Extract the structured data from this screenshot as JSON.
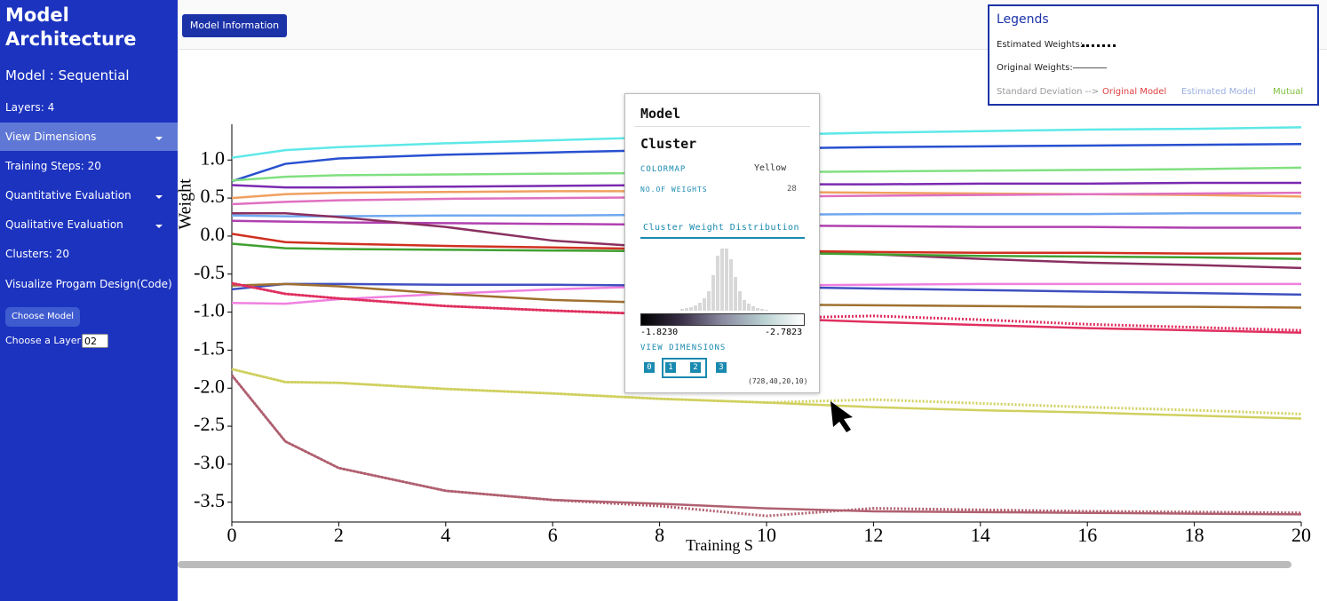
{
  "sidebar": {
    "title": "Model Architecture",
    "model": "Model : Sequential",
    "layers": "Layers: 4",
    "items": [
      "View Dimensions",
      "Training Steps: 20",
      "Quantitative Evaluation",
      "Qualitative Evaluation",
      "Clusters: 20",
      "Visualize Progam Design(Code)"
    ],
    "button": "Choose Model",
    "layer_label": "Choose a Layer:",
    "layer_value": "02"
  },
  "toolbar": {
    "button": "Model Information"
  },
  "legend_box": {
    "title": "Legends",
    "estimated": "Estimated Weights:",
    "original": "Original Weights:",
    "std_label": "Standard Deviation -->",
    "std_items": [
      "Original Model",
      "Estimated Model",
      "Mutual"
    ]
  },
  "panel": {
    "model": "Model",
    "cluster": "Cluster",
    "colormap_label": "COLORMAP",
    "colormap_value": "Yellow",
    "weights_label": "NO.OF WEIGHTS",
    "weights_value": 28,
    "tab": "Cluster Weight Distribution",
    "histogram": [
      2,
      3,
      4,
      6,
      9,
      14,
      22,
      40,
      62,
      70,
      70,
      58,
      38,
      22,
      12,
      8,
      5,
      3,
      2,
      1
    ],
    "range_min": "-1.8230",
    "range_max": "-2.7823",
    "dims_label": "VIEW DIMENSIONS",
    "dims": [
      "0",
      "1",
      "2",
      "3"
    ],
    "shape": "(728,40,20,10)"
  },
  "chart_data": {
    "type": "line",
    "ylabel": "Weight",
    "xlabel": "Training S",
    "x": [
      0,
      1,
      2,
      4,
      6,
      8,
      10,
      12,
      14,
      16,
      18,
      20
    ],
    "xlim": [
      0,
      20
    ],
    "xticks": [
      0,
      2,
      4,
      6,
      8,
      10,
      12,
      14,
      16,
      18,
      20
    ],
    "ylim": [
      -3.76,
      1.47
    ],
    "yticks": [
      {
        "value": 1,
        "label": "1.0"
      },
      0.5,
      {
        "value": 0,
        "label": "0.0"
      },
      -0.5,
      {
        "value": -1,
        "label": "-1.0"
      },
      -1.5,
      {
        "value": -2,
        "label": "-2.0"
      },
      -2.5,
      {
        "value": -3,
        "label": "-3.0"
      },
      -3.5
    ],
    "series": [
      {
        "color": "#5ee8e8",
        "dash": "solid",
        "values": [
          1.03,
          1.13,
          1.17,
          1.22,
          1.26,
          1.3,
          1.33,
          1.36,
          1.38,
          1.4,
          1.41,
          1.43
        ]
      },
      {
        "color": "#2850d0",
        "dash": "solid",
        "values": [
          0.72,
          0.95,
          1.02,
          1.07,
          1.1,
          1.13,
          1.15,
          1.17,
          1.18,
          1.19,
          1.2,
          1.21
        ]
      },
      {
        "color": "#80e080",
        "dash": "solid",
        "values": [
          0.73,
          0.78,
          0.8,
          0.81,
          0.82,
          0.83,
          0.84,
          0.85,
          0.86,
          0.87,
          0.88,
          0.9
        ]
      },
      {
        "color": "#7a2ab0",
        "dash": "solid",
        "values": [
          0.67,
          0.64,
          0.64,
          0.65,
          0.66,
          0.67,
          0.68,
          0.68,
          0.69,
          0.69,
          0.7,
          0.7
        ]
      },
      {
        "color": "#f0a060",
        "dash": "solid",
        "values": [
          0.5,
          0.55,
          0.57,
          0.58,
          0.59,
          0.59,
          0.58,
          0.57,
          0.56,
          0.55,
          0.54,
          0.52
        ]
      },
      {
        "color": "#e070c0",
        "dash": "solid",
        "values": [
          0.42,
          0.45,
          0.47,
          0.49,
          0.5,
          0.51,
          0.52,
          0.53,
          0.54,
          0.55,
          0.56,
          0.57
        ]
      },
      {
        "color": "#70a8f0",
        "dash": "solid",
        "values": [
          0.27,
          0.26,
          0.26,
          0.27,
          0.27,
          0.28,
          0.28,
          0.29,
          0.29,
          0.29,
          0.3,
          0.3
        ]
      },
      {
        "color": "#b040b0",
        "dash": "solid",
        "values": [
          0.2,
          0.19,
          0.18,
          0.17,
          0.16,
          0.15,
          0.14,
          0.13,
          0.12,
          0.12,
          0.11,
          0.11
        ]
      },
      {
        "color": "#8a3060",
        "dash": "solid",
        "values": [
          0.3,
          0.3,
          0.25,
          0.12,
          -0.06,
          -0.15,
          -0.2,
          -0.24,
          -0.3,
          -0.35,
          -0.38,
          -0.42
        ]
      },
      {
        "color": "#d03020",
        "dash": "solid",
        "values": [
          0.03,
          -0.08,
          -0.1,
          -0.13,
          -0.15,
          -0.17,
          -0.19,
          -0.21,
          -0.22,
          -0.22,
          -0.23,
          -0.23
        ]
      },
      {
        "color": "#40a030",
        "dash": "solid",
        "values": [
          -0.1,
          -0.16,
          -0.17,
          -0.18,
          -0.19,
          -0.2,
          -0.22,
          -0.24,
          -0.26,
          -0.27,
          -0.28,
          -0.3
        ]
      },
      {
        "color": "#4050c0",
        "dash": "solid",
        "values": [
          -0.7,
          -0.63,
          -0.63,
          -0.64,
          -0.64,
          -0.65,
          -0.67,
          -0.69,
          -0.71,
          -0.73,
          -0.75,
          -0.77
        ]
      },
      {
        "color": "#f080e0",
        "dash": "solid",
        "values": [
          -0.88,
          -0.89,
          -0.83,
          -0.76,
          -0.7,
          -0.66,
          -0.65,
          -0.64,
          -0.63,
          -0.63,
          -0.63,
          -0.63
        ]
      },
      {
        "color": "#a07030",
        "dash": "solid",
        "values": [
          -0.65,
          -0.63,
          -0.66,
          -0.76,
          -0.84,
          -0.88,
          -0.9,
          -0.91,
          -0.92,
          -0.93,
          -0.93,
          -0.94
        ]
      },
      {
        "color": "#e03060",
        "dash": "solid",
        "values": [
          -0.62,
          -0.76,
          -0.82,
          -0.92,
          -0.98,
          -1.03,
          -1.08,
          -1.13,
          -1.17,
          -1.21,
          -1.24,
          -1.27
        ]
      },
      {
        "color": "#e03060",
        "dash": "dotted",
        "values": [
          -0.62,
          -0.76,
          -0.82,
          -0.92,
          -0.98,
          -1.03,
          -1.08,
          -1.05,
          -1.1,
          -1.16,
          -1.2,
          -1.24
        ]
      },
      {
        "color": "#d0d060",
        "dash": "solid",
        "values": [
          -1.75,
          -1.92,
          -1.93,
          -2.01,
          -2.07,
          -2.14,
          -2.19,
          -2.25,
          -2.29,
          -2.32,
          -2.36,
          -2.4
        ]
      },
      {
        "color": "#d0d060",
        "dash": "dotted",
        "values": [
          -1.75,
          -1.92,
          -1.93,
          -2.01,
          -2.07,
          -2.14,
          -2.19,
          -2.15,
          -2.2,
          -2.25,
          -2.29,
          -2.34
        ]
      },
      {
        "color": "#b06070",
        "dash": "solid",
        "values": [
          -1.83,
          -2.7,
          -3.05,
          -3.35,
          -3.47,
          -3.52,
          -3.58,
          -3.62,
          -3.63,
          -3.64,
          -3.65,
          -3.66
        ]
      },
      {
        "color": "#b06070",
        "dash": "dotted",
        "values": [
          -1.83,
          -2.7,
          -3.05,
          -3.35,
          -3.47,
          -3.55,
          -3.68,
          -3.58,
          -3.6,
          -3.62,
          -3.63,
          -3.64
        ]
      }
    ]
  }
}
